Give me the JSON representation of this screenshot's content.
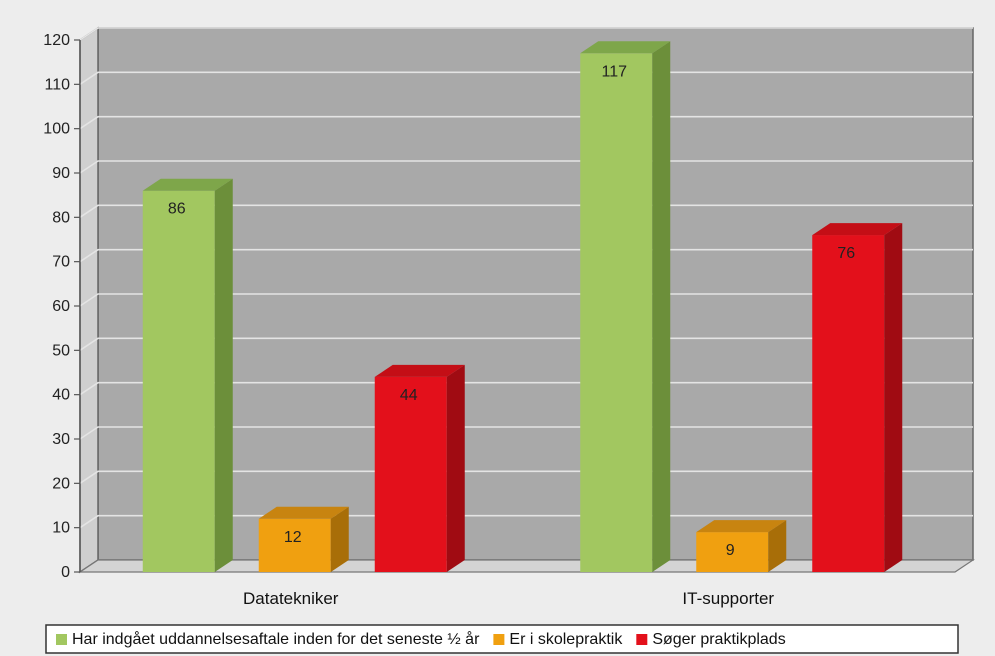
{
  "chart_data": {
    "type": "bar",
    "categories": [
      "Datatekniker",
      "IT-supporter"
    ],
    "series": [
      {
        "name": "Har indgået uddannelsesaftale inden for det seneste ½ år",
        "values": [
          86,
          117
        ],
        "color": "#a2c760",
        "side_color": "#6c8f3a",
        "top_color": "#7ea64a"
      },
      {
        "name": "Er i skolepraktik",
        "values": [
          12,
          9
        ],
        "color": "#f0a010",
        "side_color": "#a86e08",
        "top_color": "#c88410"
      },
      {
        "name": "Søger praktikplads",
        "values": [
          44,
          76
        ],
        "color": "#e3101b",
        "side_color": "#a00b12",
        "top_color": "#c40e16"
      }
    ],
    "data_labels": [
      [
        "86",
        "117"
      ],
      [
        "12",
        "9"
      ],
      [
        "44",
        "76"
      ]
    ],
    "ylim": [
      0,
      120
    ],
    "yticks": [
      "0",
      "10",
      "20",
      "30",
      "40",
      "50",
      "60",
      "70",
      "80",
      "90",
      "100",
      "110",
      "120"
    ],
    "grid": true,
    "legend_position": "bottom",
    "plot_background": "#a9a9a9"
  }
}
